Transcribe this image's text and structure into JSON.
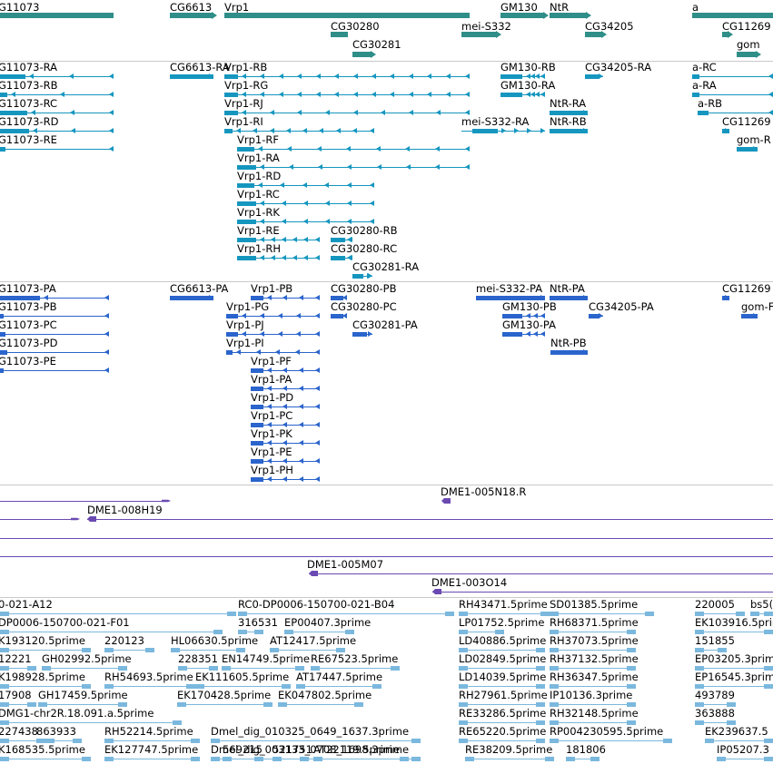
{
  "colors": {
    "gene": "#2f8e88",
    "transcript": "#1596bf",
    "cds": "#2a64cc",
    "clone": "#6a4ab2",
    "est": "#7bb8de",
    "separator": "#c9c9c9"
  },
  "tracks": {
    "genes": [
      "G11073",
      "CG6613",
      "Vrp1",
      "GM130",
      "NtR",
      "a",
      "CG30280",
      "mei-S332",
      "CG34205",
      "CG11269",
      "CG30281",
      "gom"
    ],
    "transcripts": [
      "G11073-RA",
      "G11073-RB",
      "G11073-RC",
      "G11073-RD",
      "G11073-RE",
      "CG6613-RA",
      "Vrp1-RB",
      "Vrp1-RG",
      "Vrp1-RJ",
      "Vrp1-RI",
      "Vrp1-RF",
      "Vrp1-RA",
      "Vrp1-RD",
      "Vrp1-RC",
      "Vrp1-RK",
      "Vrp1-RE",
      "Vrp1-RH",
      "CG30280-RB",
      "CG30280-RC",
      "CG30281-RA",
      "GM130-RB",
      "GM130-RA",
      "CG34205-RA",
      "NtR-RA",
      "NtR-RB",
      "mei-S332-RA",
      "a-RC",
      "a-RA",
      "a-RB",
      "CG11269",
      "gom-R"
    ],
    "proteins": [
      "G11073-PA",
      "G11073-PB",
      "G11073-PC",
      "G11073-PD",
      "G11073-PE",
      "CG6613-PA",
      "Vrp1-PB",
      "Vrp1-PG",
      "Vrp1-PJ",
      "Vrp1-PI",
      "Vrp1-PF",
      "Vrp1-PA",
      "Vrp1-PD",
      "Vrp1-PC",
      "Vrp1-PK",
      "Vrp1-PE",
      "Vrp1-PH",
      "CG30280-PB",
      "CG30280-PC",
      "CG30281-PA",
      "mei-S332-PA",
      "NtR-PA",
      "GM130-PB",
      "GM130-PA",
      "CG34205-PA",
      "NtR-PB",
      "CG11269",
      "gom-F"
    ],
    "clones": [
      "DME1-005N18.R",
      "DME1-008H19",
      "DME1-005M07",
      "DME1-003O14"
    ],
    "ests": [
      "0-021-A12",
      "RC0-DP0006-150700-021-B04",
      "RH43471.5prime",
      "SD01385.5prime",
      "220005",
      "bs5(",
      "DP0006-150700-021-F01",
      "316531",
      "EP00407.3prime",
      "LP01752.5prime",
      "RH68371.5prime",
      "EK103916.5prime",
      "K193120.5prime",
      "220123",
      "HL06630.5prime",
      "AT12417.5prime",
      "LD40886.5prime",
      "RH37073.5prime",
      "151855",
      "12221",
      "GH02992.5prime",
      "228351",
      "EN14749.5prime",
      "RE67523.5prime",
      "LD02849.5prime",
      "RH37132.5prime",
      "EP03205.3prime",
      "K198928.5prime",
      "RH54693.5prime",
      "EK111605.5prime",
      "AT17447.5prime",
      "LD14039.5prime",
      "RH36347.5prime",
      "EP16545.3prime",
      "17908",
      "GH17459.5prime",
      "EK170428.5prime",
      "EK047802.5prime",
      "RH27961.5prime",
      "IP10136.3prime",
      "493789",
      "DMG1-chr2R.18.091.a.5prime",
      "RE33286.5prime",
      "RH32148.5prime",
      "363888",
      "227438",
      "863933",
      "Dmel_dig_010325_0649_1637.3prime",
      "RE65220.5prime",
      "RP004230595.5prime",
      "RH52214.5prime",
      "Dmel_dig_003133_0708_1698.3prime",
      "EK239637.5",
      "K168535.5prime",
      "EK127747.5prime",
      "569215",
      "521751",
      "AT22119.5prime",
      "RE38209.5prime",
      "181806",
      "IP05207.3"
    ]
  }
}
